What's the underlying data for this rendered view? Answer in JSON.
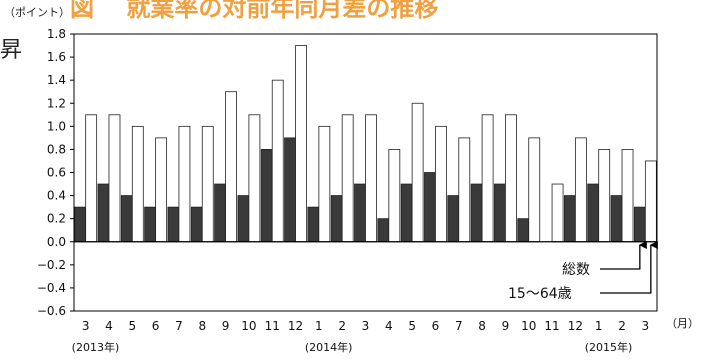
{
  "chart_data": {
    "type": "bar",
    "title_fragment": "図　 就業率の対前年同月差の推移",
    "side_fragment": "昇",
    "ylabel": "（ポイント）",
    "xunit": "（月）",
    "ylim": [
      -0.6,
      1.8
    ],
    "yticks": [
      "1.8",
      "1.6",
      "1.4",
      "1.2",
      "1.0",
      "0.8",
      "0.6",
      "0.4",
      "0.2",
      "0.0",
      "−0.2",
      "−0.4",
      "−0.6"
    ],
    "yticks_values": [
      1.8,
      1.6,
      1.4,
      1.2,
      1.0,
      0.8,
      0.6,
      0.4,
      0.2,
      0.0,
      -0.2,
      -0.4,
      -0.6
    ],
    "categories": [
      "3",
      "4",
      "5",
      "6",
      "7",
      "8",
      "9",
      "10",
      "11",
      "12",
      "1",
      "2",
      "3",
      "4",
      "5",
      "6",
      "7",
      "8",
      "9",
      "10",
      "11",
      "12",
      "1",
      "2",
      "3"
    ],
    "year_labels": [
      {
        "label": "(2013年)",
        "index": 0
      },
      {
        "label": "(2014年)",
        "index": 10
      },
      {
        "label": "(2015年)",
        "index": 22
      }
    ],
    "series": [
      {
        "name": "総数",
        "fill": "#3a3a3a",
        "values": [
          0.3,
          0.5,
          0.4,
          0.3,
          0.3,
          0.3,
          0.5,
          0.4,
          0.8,
          0.9,
          0.3,
          0.4,
          0.5,
          0.2,
          0.5,
          0.6,
          0.4,
          0.5,
          0.5,
          0.2,
          0.0,
          0.4,
          0.5,
          0.4,
          0.3
        ]
      },
      {
        "name": "15〜64歳",
        "fill": "#ffffff",
        "values": [
          1.1,
          1.1,
          1.0,
          0.9,
          1.0,
          1.0,
          1.3,
          1.1,
          1.4,
          1.7,
          1.0,
          1.1,
          1.1,
          0.8,
          1.2,
          1.0,
          0.9,
          1.1,
          1.1,
          0.9,
          0.5,
          0.9,
          0.8,
          0.8,
          0.7
        ]
      }
    ],
    "grid": false,
    "legend": "callouts bottom-right"
  }
}
